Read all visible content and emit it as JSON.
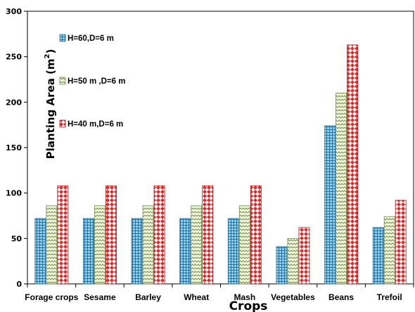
{
  "chart_data": {
    "type": "bar",
    "categories": [
      "Forage crops",
      "Sesame",
      "Barley",
      "Wheat",
      "Mash",
      "Vegetables",
      "Beans",
      "Trefoil"
    ],
    "series": [
      {
        "name": "H=60,D=6 m",
        "values": [
          72,
          72,
          72,
          72,
          72,
          41,
          174,
          62
        ],
        "color": "#7ec8e3",
        "pattern": "grid"
      },
      {
        "name": "H=50 m ,D=6 m",
        "values": [
          86,
          86,
          86,
          86,
          86,
          50,
          210,
          74
        ],
        "color": "#e8efc8",
        "pattern": "zigzag"
      },
      {
        "name": "H=40 m,D=6 m",
        "values": [
          108,
          108,
          108,
          108,
          108,
          62,
          263,
          92
        ],
        "color": "#e23030",
        "pattern": "diamond"
      }
    ],
    "xlabel": "Crops",
    "ylabel_main": "Planting Area (m",
    "ylabel_sup": "2",
    "ylabel_end": ")",
    "ylim": [
      0,
      300
    ],
    "yticks": [
      "0",
      "50",
      "100",
      "150",
      "200",
      "250",
      "300"
    ],
    "grid": false,
    "legend_position": "top-left"
  }
}
